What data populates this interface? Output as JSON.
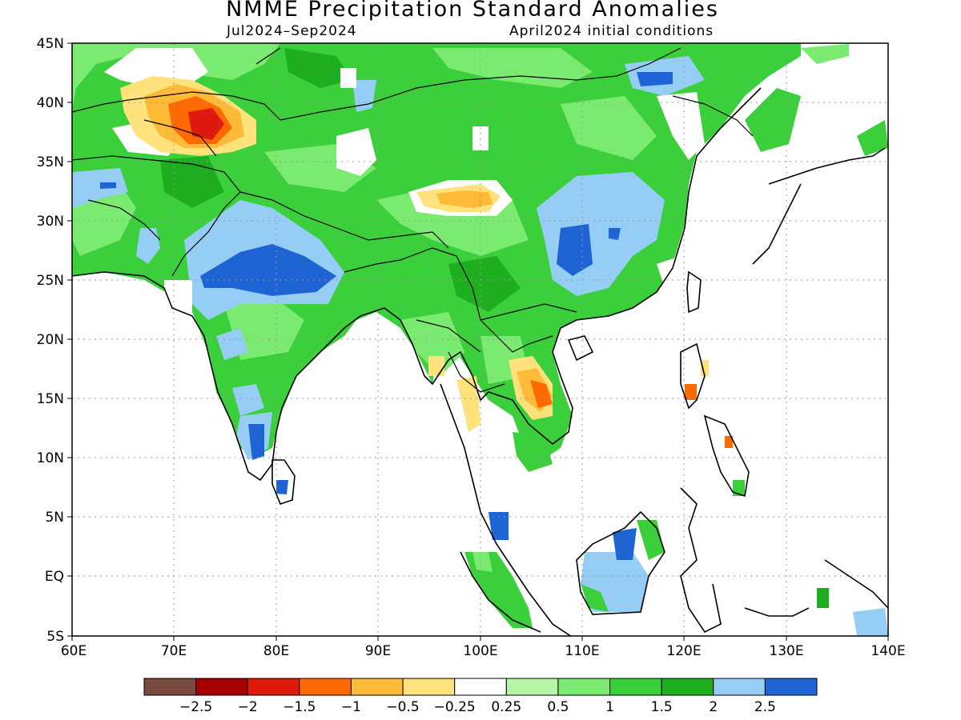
{
  "title": "NMME Precipitation Standard Anomalies",
  "subtitle_left": "Jul2024–Sep2024",
  "subtitle_right": "April2024 initial conditions",
  "lat_labels": [
    "45N",
    "40N",
    "35N",
    "30N",
    "25N",
    "20N",
    "15N",
    "10N",
    "5N",
    "EQ",
    "5S"
  ],
  "lon_labels": [
    "60E",
    "70E",
    "80E",
    "90E",
    "100E",
    "110E",
    "120E",
    "130E",
    "140E"
  ],
  "colorbar": {
    "colors": [
      "#7b4a3e",
      "#a60000",
      "#dd1a0d",
      "#ff6a00",
      "#ffba38",
      "#ffe27b",
      "#ffffff",
      "#b6f5a6",
      "#7bea70",
      "#3ccf3c",
      "#1fae1f",
      "#96cdf5",
      "#1f64d4"
    ],
    "labels": [
      "−2.5",
      "−2",
      "−1.5",
      "−1",
      "−0.5",
      "−0.25",
      "0.25",
      "0.5",
      "1",
      "1.5",
      "2",
      "2.5"
    ]
  },
  "anomaly_regions": [
    {
      "level": "1.5",
      "color": "#3ccf3c",
      "note": "widespread land"
    },
    {
      "level": "2.5",
      "color": "#1f64d4",
      "note": "central India"
    },
    {
      "level": "-1.5",
      "color": "#dd1a0d",
      "note": "western Himalaya/Karakoram"
    },
    {
      "level": "-0.5",
      "color": "#ffba38",
      "note": "central Tibet"
    },
    {
      "level": "-1",
      "color": "#ff6a00",
      "note": "Laos/Vietnam"
    }
  ]
}
